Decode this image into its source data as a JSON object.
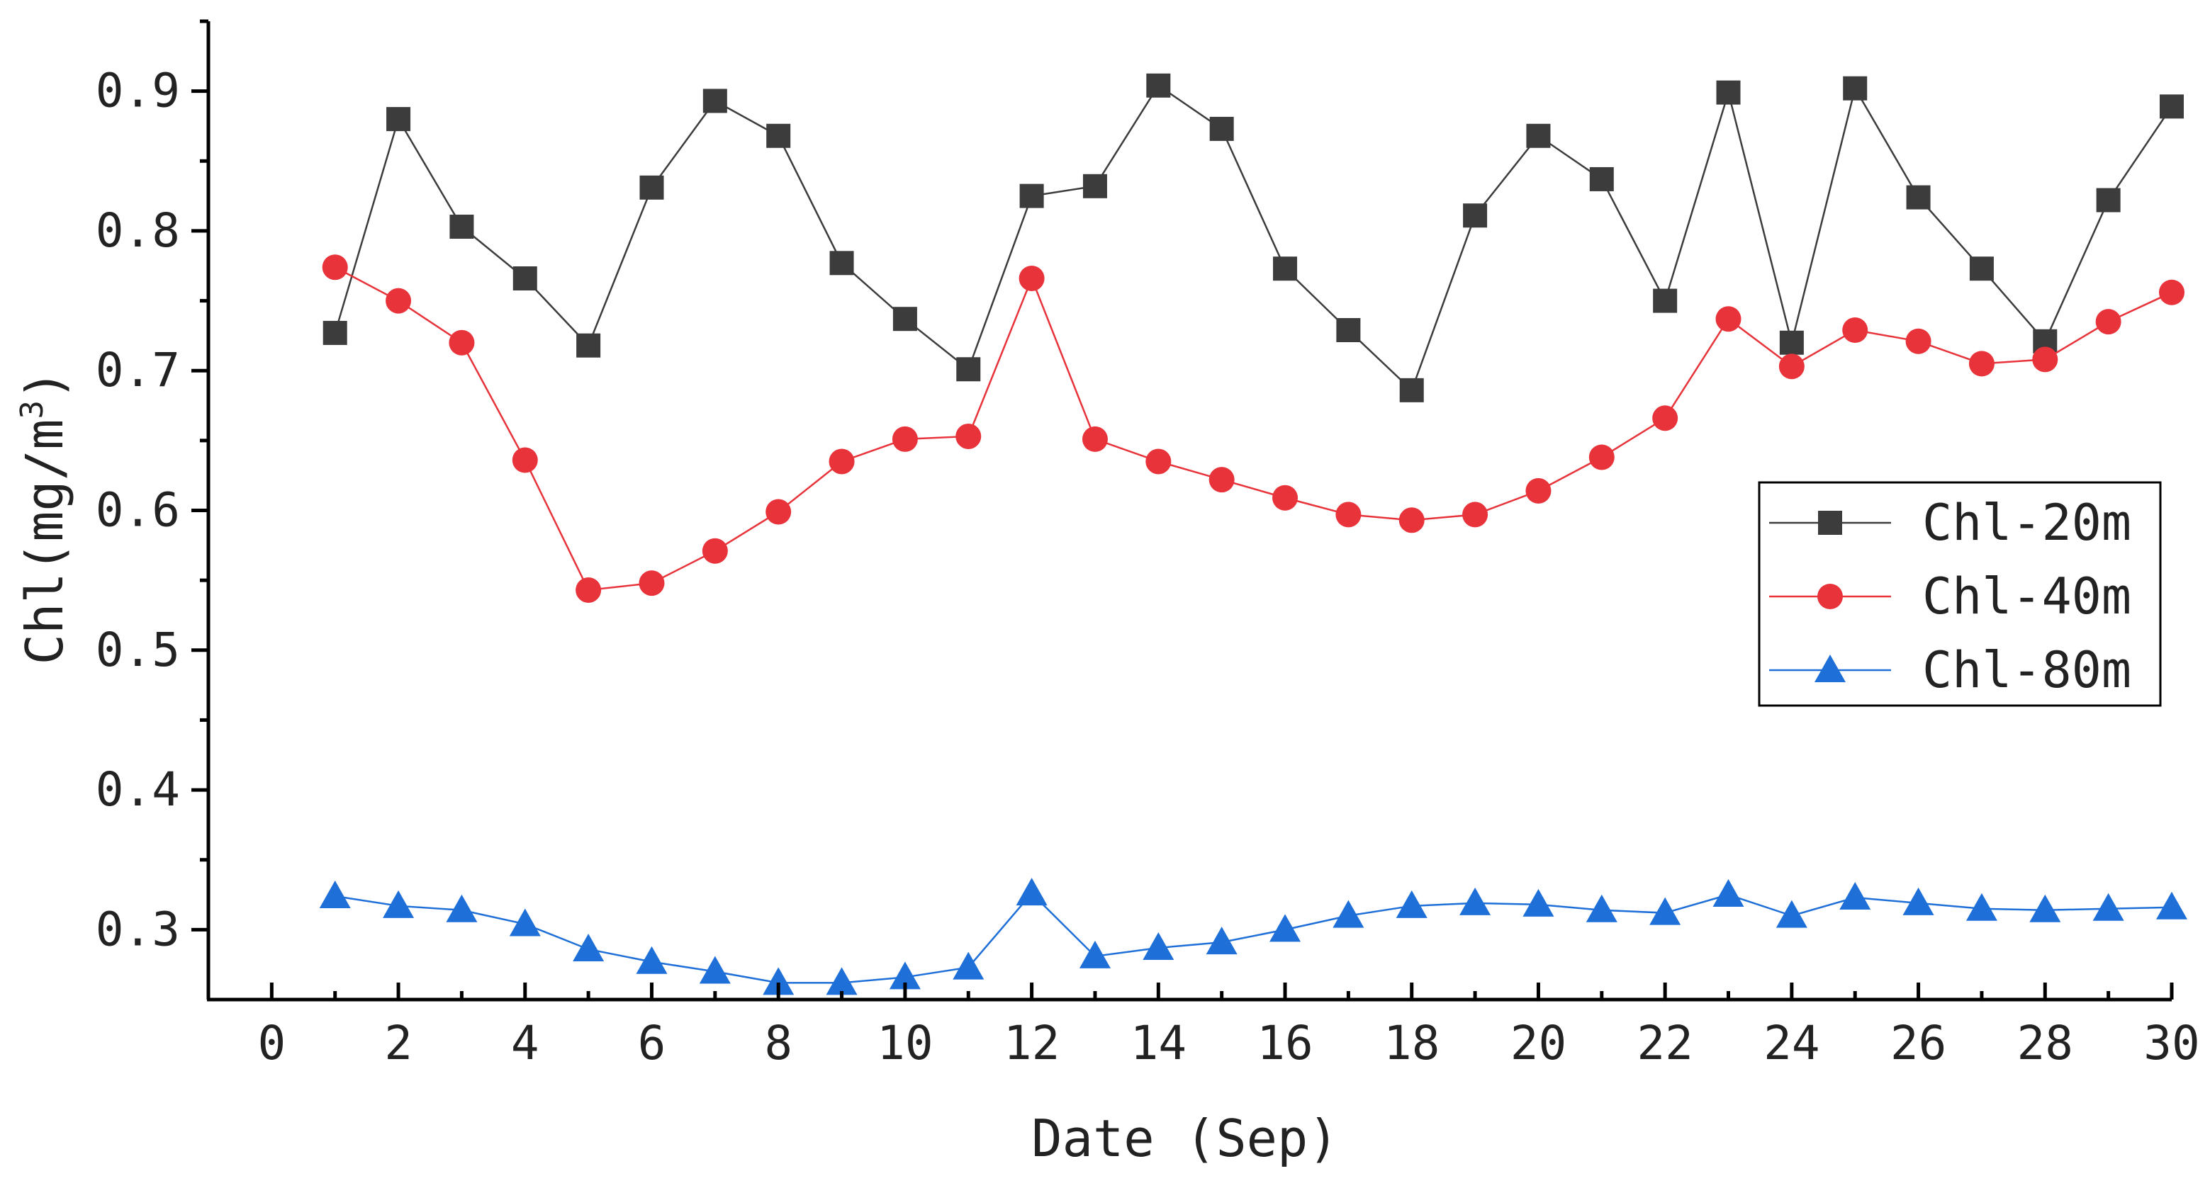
{
  "chart_data": {
    "type": "line",
    "xlabel": "Date (Sep)",
    "ylabel": "Chl(mg/m³)",
    "ylabel_parts": {
      "base": "Chl(mg/m",
      "sup": "3",
      "close": ")"
    },
    "xlim": [
      -1,
      30
    ],
    "ylim": [
      0.25,
      0.95
    ],
    "xticks": [
      0,
      2,
      4,
      6,
      8,
      10,
      12,
      14,
      16,
      18,
      20,
      22,
      24,
      26,
      28,
      30
    ],
    "xtick_labels": [
      "0",
      "2",
      "4",
      "6",
      "8",
      "10",
      "12",
      "14",
      "16",
      "18",
      "20",
      "22",
      "24",
      "26",
      "28",
      "30"
    ],
    "yticks": [
      0.3,
      0.4,
      0.5,
      0.6,
      0.7,
      0.8,
      0.9
    ],
    "ytick_labels": [
      "0.3",
      "0.4",
      "0.5",
      "0.6",
      "0.7",
      "0.8",
      "0.9"
    ],
    "legend_position": "right",
    "x": [
      1,
      2,
      3,
      4,
      5,
      6,
      7,
      8,
      9,
      10,
      11,
      12,
      13,
      14,
      15,
      16,
      17,
      18,
      19,
      20,
      21,
      22,
      23,
      24,
      25,
      26,
      27,
      28,
      29,
      30
    ],
    "series": [
      {
        "name": "Chl-20m",
        "color": "#3c3c3c",
        "marker": "square",
        "values": [
          0.727,
          0.88,
          0.803,
          0.766,
          0.718,
          0.831,
          0.893,
          0.868,
          0.777,
          0.737,
          0.701,
          0.825,
          0.832,
          0.904,
          0.873,
          0.773,
          0.729,
          0.686,
          0.811,
          0.868,
          0.837,
          0.75,
          0.899,
          0.72,
          0.902,
          0.824,
          0.773,
          0.721,
          0.822,
          0.889
        ]
      },
      {
        "name": "Chl-40m",
        "color": "#e8333a",
        "marker": "circle",
        "values": [
          0.774,
          0.75,
          0.72,
          0.636,
          0.543,
          0.548,
          0.571,
          0.599,
          0.635,
          0.651,
          0.653,
          0.766,
          0.651,
          0.635,
          0.622,
          0.609,
          0.597,
          0.593,
          0.597,
          0.614,
          0.638,
          0.666,
          0.737,
          0.703,
          0.729,
          0.721,
          0.705,
          0.708,
          0.735,
          0.756
        ]
      },
      {
        "name": "Chl-80m",
        "color": "#1f6fd8",
        "marker": "triangle",
        "values": [
          0.324,
          0.317,
          0.314,
          0.304,
          0.286,
          0.277,
          0.27,
          0.262,
          0.262,
          0.266,
          0.273,
          0.326,
          0.281,
          0.287,
          0.291,
          0.3,
          0.31,
          0.317,
          0.319,
          0.318,
          0.314,
          0.312,
          0.325,
          0.31,
          0.323,
          0.319,
          0.315,
          0.314,
          0.315,
          0.316
        ]
      }
    ]
  }
}
